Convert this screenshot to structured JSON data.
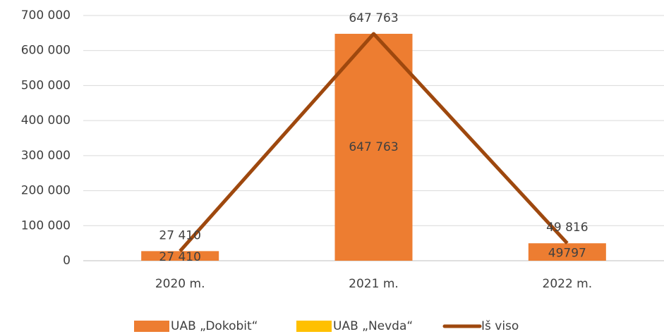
{
  "chart_data": {
    "type": "stacked-bar-line",
    "categories": [
      "2020 m.",
      "2021 m.",
      "2022 m."
    ],
    "series": [
      {
        "name": "UAB „Dokobit“",
        "color": "#ed7d31",
        "type": "bar",
        "values": [
          27410,
          647763,
          49797
        ],
        "value_labels": [
          "27 410",
          "647 763",
          "49797"
        ]
      },
      {
        "name": "UAB „Nevda“",
        "color": "#ffc000",
        "type": "bar",
        "values": [
          0,
          0,
          19
        ]
      },
      {
        "name": "Iš viso",
        "color": "#9e480e",
        "type": "line",
        "values": [
          27410,
          647763,
          49816
        ],
        "value_labels": [
          "27 410",
          "647 763",
          "49 816"
        ]
      }
    ],
    "ylim": [
      0,
      700000
    ],
    "yticks": [
      0,
      {
        "value": 100000,
        "label": "100 000"
      },
      {
        "value": 200000,
        "label": "200 000"
      },
      {
        "value": 300000,
        "label": "300 000"
      },
      {
        "value": 400000,
        "label": "400 000"
      },
      {
        "value": 500000,
        "label": "500 000"
      },
      {
        "value": 600000,
        "label": "600 000"
      },
      {
        "value": 700000,
        "label": "700 000"
      }
    ],
    "grid": true,
    "legend": "bottom"
  }
}
